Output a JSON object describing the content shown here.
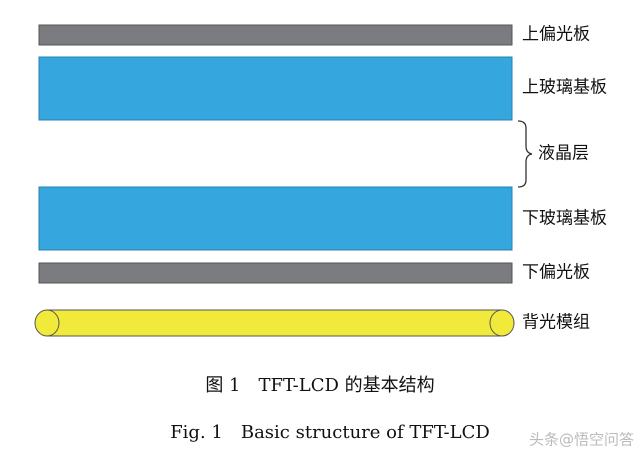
{
  "layers": [
    {
      "label": "上偏光板"
    },
    {
      "label": "上玻璃基板"
    },
    {
      "label": "下玻璃基板"
    },
    {
      "label": "下偏光板"
    },
    {
      "label": "背光模组"
    }
  ],
  "liquid_crystal": {
    "label": "液晶层"
  },
  "caption": {
    "cn": "图 1　TFT-LCD 的基本结构",
    "en": "Fig. 1　Basic structure of TFT-LCD"
  },
  "watermark": "头条@悟空问答"
}
